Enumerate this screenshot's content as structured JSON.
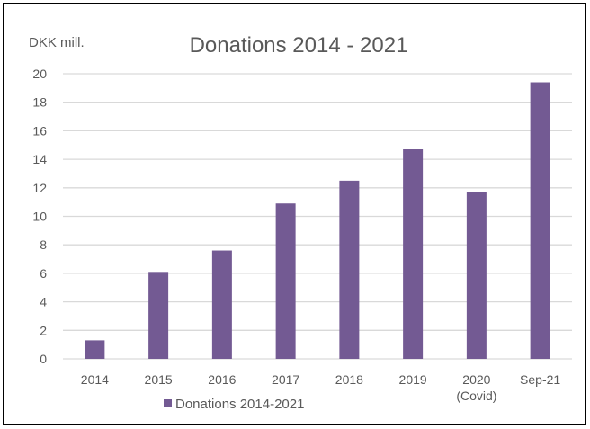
{
  "chart_data": {
    "type": "bar",
    "title": "Donations 2014 - 2021",
    "ylabel": "DKK mill.",
    "xlabel": "",
    "categories": [
      [
        "2014"
      ],
      [
        "2015"
      ],
      [
        "2016"
      ],
      [
        "2017"
      ],
      [
        "2018"
      ],
      [
        "2019"
      ],
      [
        "2020",
        "(Covid)"
      ],
      [
        "Sep-21"
      ]
    ],
    "series": [
      {
        "name": "Donations 2014-2021",
        "values": [
          1.3,
          6.1,
          7.6,
          10.9,
          12.5,
          14.7,
          11.7,
          19.4
        ]
      }
    ],
    "ylim": [
      0,
      20
    ],
    "yticks": [
      "0",
      "2",
      "4",
      "6",
      "8",
      "10",
      "12",
      "14",
      "16",
      "18",
      "20"
    ],
    "grid": true,
    "legend": "bottom",
    "colors": {
      "bar": "#735A93",
      "grid": "#D9D9D9",
      "text": "#595959"
    }
  }
}
